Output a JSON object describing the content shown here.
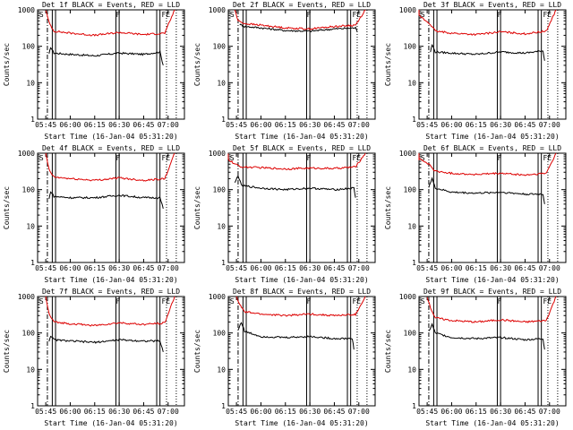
{
  "colors": {
    "events": "#000000",
    "lld": "#dd0000",
    "axis": "#000000",
    "background": "#ffffff"
  },
  "chart_data": [
    {
      "type": "line",
      "title": "Det 1f BLACK = Events, RED = LLD",
      "ylabel": "Counts/sec",
      "xlabel": "Start Time (16-Jan-04 05:31:20)",
      "xticks": [
        "05:45",
        "06:00",
        "06:15",
        "06:30",
        "06:45",
        "07:00"
      ],
      "yticks": [
        "1",
        "10",
        "100",
        "1000"
      ],
      "yscale": "log",
      "ylim": [
        1,
        1000
      ],
      "flags": [
        "S",
        "F",
        "FE"
      ],
      "series": [
        {
          "name": "BLACK = Events",
          "values": [
            {
              "t": "05:47",
              "v": 60
            },
            {
              "t": "05:48",
              "v": 95
            },
            {
              "t": "05:50",
              "v": 65
            },
            {
              "t": "06:00",
              "v": 60
            },
            {
              "t": "06:15",
              "v": 55
            },
            {
              "t": "06:30",
              "v": 65
            },
            {
              "t": "06:45",
              "v": 60
            },
            {
              "t": "06:55",
              "v": 70
            },
            {
              "t": "06:57",
              "v": 30
            }
          ]
        },
        {
          "name": "RED = LLD",
          "values": [
            {
              "t": "05:45",
              "v": 1000
            },
            {
              "t": "05:47",
              "v": 450
            },
            {
              "t": "05:50",
              "v": 260
            },
            {
              "t": "06:00",
              "v": 230
            },
            {
              "t": "06:15",
              "v": 200
            },
            {
              "t": "06:30",
              "v": 240
            },
            {
              "t": "06:45",
              "v": 210
            },
            {
              "t": "06:58",
              "v": 230
            },
            {
              "t": "07:04",
              "v": 1000
            }
          ]
        }
      ]
    },
    {
      "type": "line",
      "title": "Det 2f BLACK = Events, RED = LLD",
      "ylabel": "Counts/sec",
      "xlabel": "Start Time (16-Jan-04 05:31:20)",
      "xticks": [
        "05:45",
        "06:00",
        "06:15",
        "06:30",
        "06:45",
        "07:00"
      ],
      "yticks": [
        "1",
        "10",
        "100",
        "1000"
      ],
      "yscale": "log",
      "ylim": [
        1,
        1000
      ],
      "flags": [
        "S",
        "F",
        "FE"
      ],
      "series": [
        {
          "name": "BLACK = Events",
          "values": [
            {
              "t": "05:47",
              "v": 400
            },
            {
              "t": "05:50",
              "v": 350
            },
            {
              "t": "06:00",
              "v": 320
            },
            {
              "t": "06:15",
              "v": 270
            },
            {
              "t": "06:30",
              "v": 260
            },
            {
              "t": "06:45",
              "v": 300
            },
            {
              "t": "06:58",
              "v": 320
            },
            {
              "t": "06:59",
              "v": 250
            }
          ]
        },
        {
          "name": "RED = LLD",
          "values": [
            {
              "t": "05:44",
              "v": 1000
            },
            {
              "t": "05:46",
              "v": 500
            },
            {
              "t": "05:50",
              "v": 420
            },
            {
              "t": "06:00",
              "v": 380
            },
            {
              "t": "06:15",
              "v": 320
            },
            {
              "t": "06:30",
              "v": 300
            },
            {
              "t": "06:45",
              "v": 350
            },
            {
              "t": "06:58",
              "v": 380
            },
            {
              "t": "07:04",
              "v": 1000
            }
          ]
        }
      ]
    },
    {
      "type": "line",
      "title": "Det 3f BLACK = Events, RED = LLD",
      "ylabel": "Counts/sec",
      "xlabel": "Start Time (16-Jan-04 05:31:20)",
      "xticks": [
        "05:45",
        "06:00",
        "06:15",
        "06:30",
        "06:45",
        "07:00"
      ],
      "yticks": [
        "1",
        "10",
        "100",
        "1000"
      ],
      "yscale": "log",
      "ylim": [
        1,
        1000
      ],
      "flags": [
        "S",
        "F",
        "FE"
      ],
      "series": [
        {
          "name": "BLACK = Events",
          "values": [
            {
              "t": "05:47",
              "v": 70
            },
            {
              "t": "05:48",
              "v": 110
            },
            {
              "t": "05:50",
              "v": 70
            },
            {
              "t": "06:00",
              "v": 65
            },
            {
              "t": "06:15",
              "v": 60
            },
            {
              "t": "06:30",
              "v": 70
            },
            {
              "t": "06:45",
              "v": 65
            },
            {
              "t": "06:56",
              "v": 75
            },
            {
              "t": "06:57",
              "v": 40
            }
          ]
        },
        {
          "name": "RED = LLD",
          "values": [
            {
              "t": "05:32",
              "v": 1000
            },
            {
              "t": "05:40",
              "v": 700
            },
            {
              "t": "05:47",
              "v": 400
            },
            {
              "t": "05:50",
              "v": 260
            },
            {
              "t": "06:00",
              "v": 230
            },
            {
              "t": "06:15",
              "v": 210
            },
            {
              "t": "06:30",
              "v": 250
            },
            {
              "t": "06:45",
              "v": 220
            },
            {
              "t": "06:58",
              "v": 260
            },
            {
              "t": "07:04",
              "v": 1000
            }
          ]
        }
      ]
    },
    {
      "type": "line",
      "title": "Det 4f BLACK = Events, RED = LLD",
      "ylabel": "Counts/sec",
      "xlabel": "Start Time (16-Jan-04 05:31:20)",
      "xticks": [
        "05:45",
        "06:00",
        "06:15",
        "06:30",
        "06:45",
        "07:00"
      ],
      "yticks": [
        "1",
        "10",
        "100",
        "1000"
      ],
      "yscale": "log",
      "ylim": [
        1,
        1000
      ],
      "flags": [
        "S",
        "F",
        "FE"
      ],
      "series": [
        {
          "name": "BLACK = Events",
          "values": [
            {
              "t": "05:47",
              "v": 55
            },
            {
              "t": "05:48",
              "v": 90
            },
            {
              "t": "05:50",
              "v": 65
            },
            {
              "t": "06:00",
              "v": 60
            },
            {
              "t": "06:15",
              "v": 60
            },
            {
              "t": "06:30",
              "v": 70
            },
            {
              "t": "06:45",
              "v": 60
            },
            {
              "t": "06:55",
              "v": 60
            },
            {
              "t": "06:57",
              "v": 30
            }
          ]
        },
        {
          "name": "RED = LLD",
          "values": [
            {
              "t": "05:45",
              "v": 1000
            },
            {
              "t": "05:47",
              "v": 350
            },
            {
              "t": "05:50",
              "v": 220
            },
            {
              "t": "06:00",
              "v": 200
            },
            {
              "t": "06:15",
              "v": 180
            },
            {
              "t": "06:30",
              "v": 210
            },
            {
              "t": "06:45",
              "v": 180
            },
            {
              "t": "06:58",
              "v": 200
            },
            {
              "t": "07:04",
              "v": 1000
            }
          ]
        }
      ]
    },
    {
      "type": "line",
      "title": "Det 5f BLACK = Events, RED = LLD",
      "ylabel": "Counts/sec",
      "xlabel": "Start Time (16-Jan-04 05:31:20)",
      "xticks": [
        "05:45",
        "06:00",
        "06:15",
        "06:30",
        "06:45",
        "07:00"
      ],
      "yticks": [
        "1",
        "10",
        "100",
        "1000"
      ],
      "yscale": "log",
      "ylim": [
        1,
        1000
      ],
      "flags": [
        "S",
        "F",
        "FE"
      ],
      "series": [
        {
          "name": "BLACK = Events",
          "values": [
            {
              "t": "05:44",
              "v": 150
            },
            {
              "t": "05:46",
              "v": 250
            },
            {
              "t": "05:48",
              "v": 130
            },
            {
              "t": "06:00",
              "v": 110
            },
            {
              "t": "06:15",
              "v": 100
            },
            {
              "t": "06:30",
              "v": 110
            },
            {
              "t": "06:45",
              "v": 100
            },
            {
              "t": "06:57",
              "v": 110
            },
            {
              "t": "06:58",
              "v": 60
            }
          ]
        },
        {
          "name": "RED = LLD",
          "values": [
            {
              "t": "05:32",
              "v": 1000
            },
            {
              "t": "05:38",
              "v": 800
            },
            {
              "t": "05:44",
              "v": 500
            },
            {
              "t": "05:48",
              "v": 420
            },
            {
              "t": "06:00",
              "v": 400
            },
            {
              "t": "06:15",
              "v": 370
            },
            {
              "t": "06:30",
              "v": 390
            },
            {
              "t": "06:45",
              "v": 380
            },
            {
              "t": "06:58",
              "v": 420
            },
            {
              "t": "07:04",
              "v": 1000
            }
          ]
        }
      ]
    },
    {
      "type": "line",
      "title": "Det 6f BLACK = Events, RED = LLD",
      "ylabel": "Counts/sec",
      "xlabel": "Start Time (16-Jan-04 05:31:20)",
      "xticks": [
        "05:45",
        "06:00",
        "06:15",
        "06:30",
        "06:45",
        "07:00"
      ],
      "yticks": [
        "1",
        "10",
        "100",
        "1000"
      ],
      "yscale": "log",
      "ylim": [
        1,
        1000
      ],
      "flags": [
        "S",
        "F",
        "FE"
      ],
      "series": [
        {
          "name": "BLACK = Events",
          "values": [
            {
              "t": "05:46",
              "v": 120
            },
            {
              "t": "05:48",
              "v": 200
            },
            {
              "t": "05:50",
              "v": 110
            },
            {
              "t": "06:00",
              "v": 85
            },
            {
              "t": "06:15",
              "v": 80
            },
            {
              "t": "06:30",
              "v": 85
            },
            {
              "t": "06:45",
              "v": 75
            },
            {
              "t": "06:56",
              "v": 75
            },
            {
              "t": "06:57",
              "v": 40
            }
          ]
        },
        {
          "name": "RED = LLD",
          "values": [
            {
              "t": "05:32",
              "v": 1000
            },
            {
              "t": "05:40",
              "v": 700
            },
            {
              "t": "05:46",
              "v": 500
            },
            {
              "t": "05:50",
              "v": 320
            },
            {
              "t": "06:00",
              "v": 280
            },
            {
              "t": "06:15",
              "v": 260
            },
            {
              "t": "06:30",
              "v": 280
            },
            {
              "t": "06:45",
              "v": 250
            },
            {
              "t": "06:58",
              "v": 280
            },
            {
              "t": "07:04",
              "v": 1000
            }
          ]
        }
      ]
    },
    {
      "type": "line",
      "title": "Det 7f BLACK = Events, RED = LLD",
      "ylabel": "Counts/sec",
      "xlabel": "Start Time (16-Jan-04 05:31:20)",
      "xticks": [
        "05:45",
        "06:00",
        "06:15",
        "06:30",
        "06:45",
        "07:00"
      ],
      "yticks": [
        "1",
        "10",
        "100",
        "1000"
      ],
      "yscale": "log",
      "ylim": [
        1,
        1000
      ],
      "flags": [
        "S",
        "F",
        "FE"
      ],
      "series": [
        {
          "name": "BLACK = Events",
          "values": [
            {
              "t": "05:47",
              "v": 60
            },
            {
              "t": "05:48",
              "v": 85
            },
            {
              "t": "05:50",
              "v": 65
            },
            {
              "t": "06:00",
              "v": 60
            },
            {
              "t": "06:15",
              "v": 55
            },
            {
              "t": "06:30",
              "v": 65
            },
            {
              "t": "06:45",
              "v": 60
            },
            {
              "t": "06:55",
              "v": 60
            },
            {
              "t": "06:57",
              "v": 30
            }
          ]
        },
        {
          "name": "RED = LLD",
          "values": [
            {
              "t": "05:45",
              "v": 1000
            },
            {
              "t": "05:47",
              "v": 330
            },
            {
              "t": "05:50",
              "v": 200
            },
            {
              "t": "06:00",
              "v": 180
            },
            {
              "t": "06:15",
              "v": 160
            },
            {
              "t": "06:30",
              "v": 190
            },
            {
              "t": "06:45",
              "v": 170
            },
            {
              "t": "06:58",
              "v": 190
            },
            {
              "t": "07:04",
              "v": 1000
            }
          ]
        }
      ]
    },
    {
      "type": "line",
      "title": "Det 8f BLACK = Events, RED = LLD",
      "ylabel": "Counts/sec",
      "xlabel": "Start Time (16-Jan-04 05:31:20)",
      "xticks": [
        "05:45",
        "06:00",
        "06:15",
        "06:30",
        "06:45",
        "07:00"
      ],
      "yticks": [
        "1",
        "10",
        "100",
        "1000"
      ],
      "yscale": "log",
      "ylim": [
        1,
        1000
      ],
      "flags": [
        "S",
        "F",
        "FE"
      ],
      "series": [
        {
          "name": "BLACK = Events",
          "values": [
            {
              "t": "05:46",
              "v": 120
            },
            {
              "t": "05:48",
              "v": 200
            },
            {
              "t": "05:50",
              "v": 110
            },
            {
              "t": "06:00",
              "v": 80
            },
            {
              "t": "06:15",
              "v": 75
            },
            {
              "t": "06:30",
              "v": 80
            },
            {
              "t": "06:45",
              "v": 70
            },
            {
              "t": "06:56",
              "v": 70
            },
            {
              "t": "06:57",
              "v": 35
            }
          ]
        },
        {
          "name": "RED = LLD",
          "values": [
            {
              "t": "05:45",
              "v": 1000
            },
            {
              "t": "05:47",
              "v": 600
            },
            {
              "t": "05:50",
              "v": 380
            },
            {
              "t": "06:00",
              "v": 330
            },
            {
              "t": "06:15",
              "v": 300
            },
            {
              "t": "06:30",
              "v": 330
            },
            {
              "t": "06:45",
              "v": 300
            },
            {
              "t": "06:58",
              "v": 320
            },
            {
              "t": "07:04",
              "v": 1000
            }
          ]
        }
      ]
    },
    {
      "type": "line",
      "title": "Det 9f BLACK = Events, RED = LLD",
      "ylabel": "Counts/sec",
      "xlabel": "Start Time (16-Jan-04 05:31:20)",
      "xticks": [
        "05:45",
        "06:00",
        "06:15",
        "06:30",
        "06:45",
        "07:00"
      ],
      "yticks": [
        "1",
        "10",
        "100",
        "1000"
      ],
      "yscale": "log",
      "ylim": [
        1,
        1000
      ],
      "flags": [
        "S",
        "F",
        "FE"
      ],
      "series": [
        {
          "name": "BLACK = Events",
          "values": [
            {
              "t": "05:46",
              "v": 110
            },
            {
              "t": "05:48",
              "v": 170
            },
            {
              "t": "05:50",
              "v": 100
            },
            {
              "t": "06:00",
              "v": 75
            },
            {
              "t": "06:15",
              "v": 70
            },
            {
              "t": "06:30",
              "v": 75
            },
            {
              "t": "06:45",
              "v": 65
            },
            {
              "t": "06:56",
              "v": 70
            },
            {
              "t": "06:57",
              "v": 35
            }
          ]
        },
        {
          "name": "RED = LLD",
          "values": [
            {
              "t": "05:45",
              "v": 1000
            },
            {
              "t": "05:47",
              "v": 500
            },
            {
              "t": "05:50",
              "v": 260
            },
            {
              "t": "06:00",
              "v": 220
            },
            {
              "t": "06:15",
              "v": 200
            },
            {
              "t": "06:30",
              "v": 230
            },
            {
              "t": "06:45",
              "v": 200
            },
            {
              "t": "06:58",
              "v": 220
            },
            {
              "t": "07:04",
              "v": 1000
            }
          ]
        }
      ]
    }
  ]
}
